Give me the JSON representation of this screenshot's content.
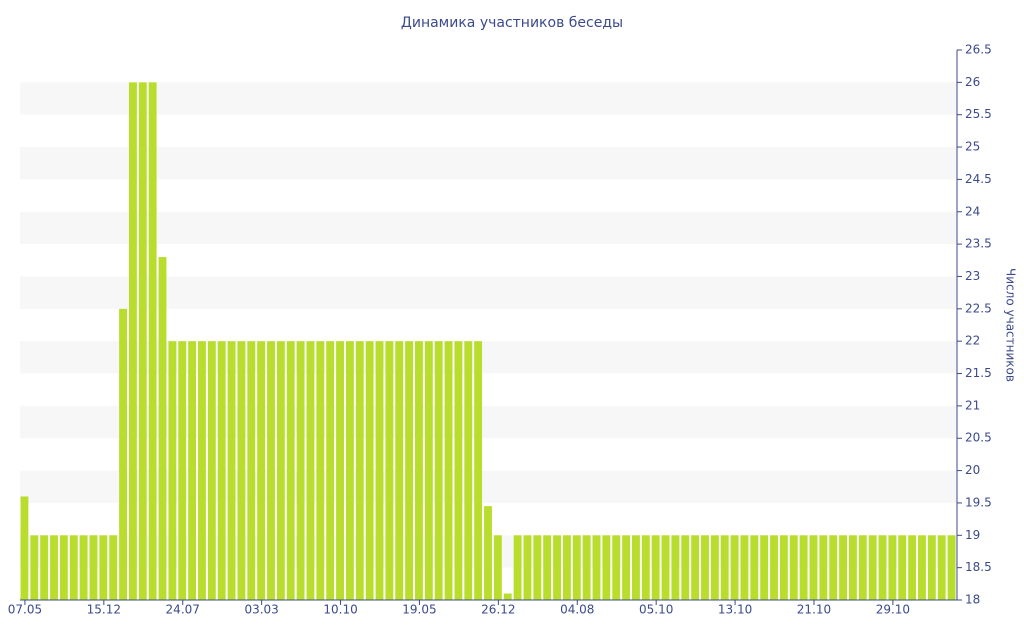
{
  "chart_data": {
    "type": "bar",
    "title": "Динамика участников беседы",
    "y_label": "Число участников",
    "categories": [
      "07.05",
      null,
      null,
      null,
      null,
      null,
      null,
      null,
      "15.12",
      null,
      null,
      null,
      null,
      null,
      null,
      null,
      "24.07",
      null,
      null,
      null,
      null,
      null,
      null,
      null,
      "03.03",
      null,
      null,
      null,
      null,
      null,
      null,
      null,
      "10.10",
      null,
      null,
      null,
      null,
      null,
      null,
      null,
      "19.05",
      null,
      null,
      null,
      null,
      null,
      null,
      null,
      "26.12",
      null,
      null,
      null,
      null,
      null,
      null,
      null,
      "04.08",
      null,
      null,
      null,
      null,
      null,
      null,
      null,
      "05.10",
      null,
      null,
      null,
      null,
      null,
      null,
      null,
      "13.10",
      null,
      null,
      null,
      null,
      null,
      null,
      null,
      "21.10",
      null,
      null,
      null,
      null,
      null,
      null,
      null,
      "29.10",
      null,
      null,
      null,
      null,
      null,
      null
    ],
    "values": [
      19.6,
      19,
      19,
      19,
      19,
      19,
      19,
      19,
      19,
      19,
      22.5,
      26,
      26,
      26,
      23.3,
      22,
      22,
      22,
      22,
      22,
      22,
      22,
      22,
      22,
      22,
      22,
      22,
      22,
      22,
      22,
      22,
      22,
      22,
      22,
      22,
      22,
      22,
      22,
      22,
      22,
      22,
      22,
      22,
      22,
      22,
      22,
      22,
      19.45,
      19,
      18.1,
      19,
      19,
      19,
      19,
      19,
      19,
      19,
      19,
      19,
      19,
      19,
      19,
      19,
      19,
      19,
      19,
      19,
      19,
      19,
      19,
      19,
      19,
      19,
      19,
      19,
      19,
      19,
      19,
      19,
      19,
      19,
      19,
      19,
      19,
      19,
      19,
      19,
      19,
      19,
      19,
      19,
      19,
      19,
      19,
      19
    ],
    "color": "#b8dd2c",
    "ylim": [
      18,
      26.5
    ],
    "yticks": [
      18,
      18.5,
      19,
      19.5,
      20,
      20.5,
      21,
      21.5,
      22,
      22.5,
      23,
      23.5,
      24,
      24.5,
      25,
      25.5,
      26,
      26.5
    ],
    "grid": "bands",
    "y_axis_side": "right"
  }
}
